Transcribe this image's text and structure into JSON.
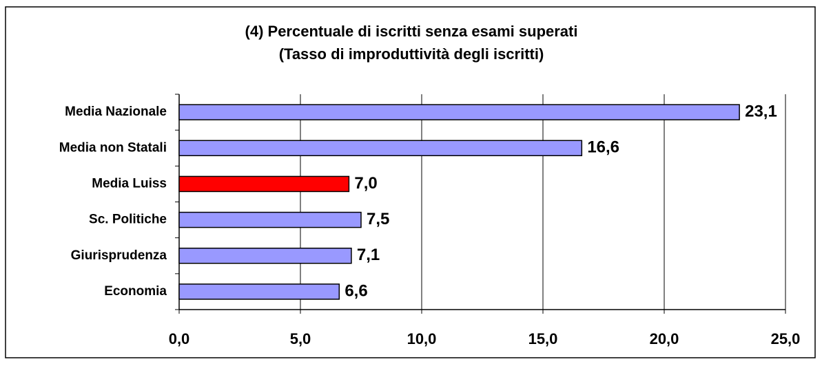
{
  "chart_data": {
    "type": "bar",
    "orientation": "horizontal",
    "title": [
      "(4) Percentuale di iscritti senza esami superati",
      "(Tasso di improduttività degli iscritti)"
    ],
    "categories": [
      "Media Nazionale",
      "Media non Statali",
      "Media Luiss",
      "Sc. Politiche",
      "Giurisprudenza",
      "Economia"
    ],
    "values": [
      23.1,
      16.6,
      7.0,
      7.5,
      7.1,
      6.6
    ],
    "value_labels": [
      "23,1",
      "16,6",
      "7,0",
      "7,5",
      "7,1",
      "6,6"
    ],
    "colors": [
      "#9999ff",
      "#9999ff",
      "#ff0000",
      "#9999ff",
      "#9999ff",
      "#9999ff"
    ],
    "xlim": [
      0,
      25
    ],
    "xticks": [
      {
        "value": 0,
        "label": "0,0"
      },
      {
        "value": 5,
        "label": "5,0"
      },
      {
        "value": 10,
        "label": "10,0"
      },
      {
        "value": 15,
        "label": "15,0"
      },
      {
        "value": 20,
        "label": "20,0"
      },
      {
        "value": 25,
        "label": "25,0"
      }
    ],
    "grid": true
  }
}
